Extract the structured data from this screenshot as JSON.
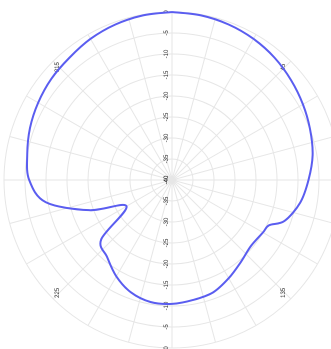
{
  "chart_data": {
    "type": "line",
    "coordinate_system": "polar",
    "angle_zero": "top",
    "angle_direction": "clockwise",
    "radial_range": [
      -40,
      0
    ],
    "radial_ticks": [
      "-40",
      "-35",
      "-30",
      "-25",
      "-20",
      "-15",
      "-10",
      "-5",
      "0"
    ],
    "angle_labels": [
      {
        "angle": 45,
        "text": "45"
      },
      {
        "angle": 135,
        "text": "135"
      },
      {
        "angle": 225,
        "text": "225"
      },
      {
        "angle": 315,
        "text": "315"
      }
    ],
    "grid": true,
    "series": [
      {
        "color": "#5a5df0",
        "points": [
          {
            "angle": 0,
            "r": 0
          },
          {
            "angle": 10,
            "r": -0.2
          },
          {
            "angle": 20,
            "r": -0.6
          },
          {
            "angle": 30,
            "r": -1.2
          },
          {
            "angle": 40,
            "r": -2
          },
          {
            "angle": 50,
            "r": -3
          },
          {
            "angle": 60,
            "r": -4
          },
          {
            "angle": 70,
            "r": -5
          },
          {
            "angle": 80,
            "r": -6
          },
          {
            "angle": 90,
            "r": -7.5
          },
          {
            "angle": 100,
            "r": -9
          },
          {
            "angle": 110,
            "r": -11.5
          },
          {
            "angle": 115,
            "r": -14.5
          },
          {
            "angle": 120,
            "r": -15
          },
          {
            "angle": 130,
            "r": -15.5
          },
          {
            "angle": 140,
            "r": -14.5
          },
          {
            "angle": 150,
            "r": -13
          },
          {
            "angle": 160,
            "r": -11.5
          },
          {
            "angle": 170,
            "r": -11
          },
          {
            "angle": 180,
            "r": -10.5
          },
          {
            "angle": 190,
            "r": -10.5
          },
          {
            "angle": 200,
            "r": -11.5
          },
          {
            "angle": 210,
            "r": -13.5
          },
          {
            "angle": 220,
            "r": -16
          },
          {
            "angle": 230,
            "r": -18
          },
          {
            "angle": 240,
            "r": -27.5
          },
          {
            "angle": 250,
            "r": -19
          },
          {
            "angle": 260,
            "r": -9.5
          },
          {
            "angle": 270,
            "r": -6
          },
          {
            "angle": 280,
            "r": -5
          },
          {
            "angle": 290,
            "r": -4
          },
          {
            "angle": 300,
            "r": -3.2
          },
          {
            "angle": 310,
            "r": -2.5
          },
          {
            "angle": 320,
            "r": -2
          },
          {
            "angle": 330,
            "r": -1.2
          },
          {
            "angle": 340,
            "r": -0.6
          },
          {
            "angle": 350,
            "r": -0.2
          },
          {
            "angle": 360,
            "r": 0
          }
        ]
      }
    ]
  }
}
